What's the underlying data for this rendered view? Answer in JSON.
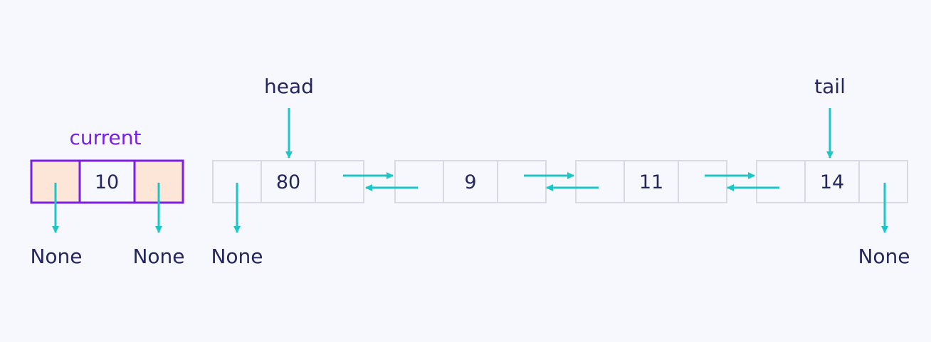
{
  "current": {
    "label": "current",
    "value": "10",
    "prev": "None",
    "next": "None"
  },
  "nodes": [
    {
      "value": "80",
      "pointer": "head",
      "prev": "None"
    },
    {
      "value": "9"
    },
    {
      "value": "11"
    },
    {
      "value": "14",
      "pointer": "tail",
      "next": "None"
    }
  ],
  "colors": {
    "background": "#f7f8fd",
    "node_border": "#d7dae2",
    "arrow": "#1cc6c6",
    "current_border": "#7b1fe4",
    "current_fill": "#fde6d7",
    "text": "#25265e"
  }
}
